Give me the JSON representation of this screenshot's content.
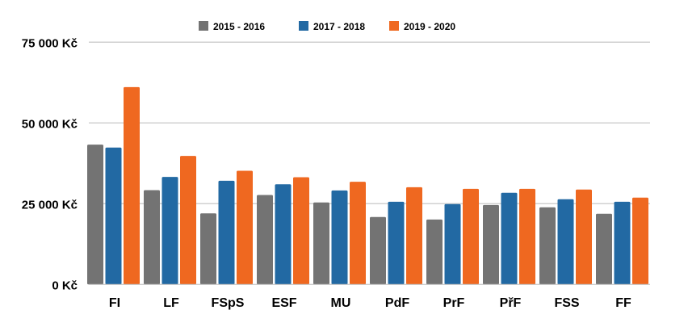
{
  "chart_data": {
    "type": "bar",
    "title": "",
    "xlabel": "",
    "ylabel": "",
    "ylim": [
      0,
      75000
    ],
    "yticks": [
      0,
      25000,
      50000,
      75000
    ],
    "ytick_labels": [
      "0 Kč",
      "25 000 Kč",
      "50 000 Kč",
      "75 000 Kč"
    ],
    "grid": true,
    "legend_position": "top",
    "categories": [
      "FI",
      "LF",
      "FSpS",
      "ESF",
      "MU",
      "PdF",
      "PrF",
      "PřF",
      "FSS",
      "FF"
    ],
    "series": [
      {
        "name": "2015 - 2016",
        "color": "#737373",
        "values": [
          43300,
          29200,
          22000,
          27700,
          25400,
          20900,
          20100,
          24600,
          23900,
          21900
        ]
      },
      {
        "name": "2017 - 2018",
        "color": "#2269a3",
        "values": [
          42400,
          33300,
          32100,
          31000,
          29100,
          25600,
          24900,
          28400,
          26400,
          25600
        ]
      },
      {
        "name": "2019 - 2020",
        "color": "#ef6820",
        "values": [
          61100,
          39800,
          35200,
          33200,
          31800,
          30100,
          29600,
          29600,
          29400,
          26900
        ]
      }
    ]
  }
}
